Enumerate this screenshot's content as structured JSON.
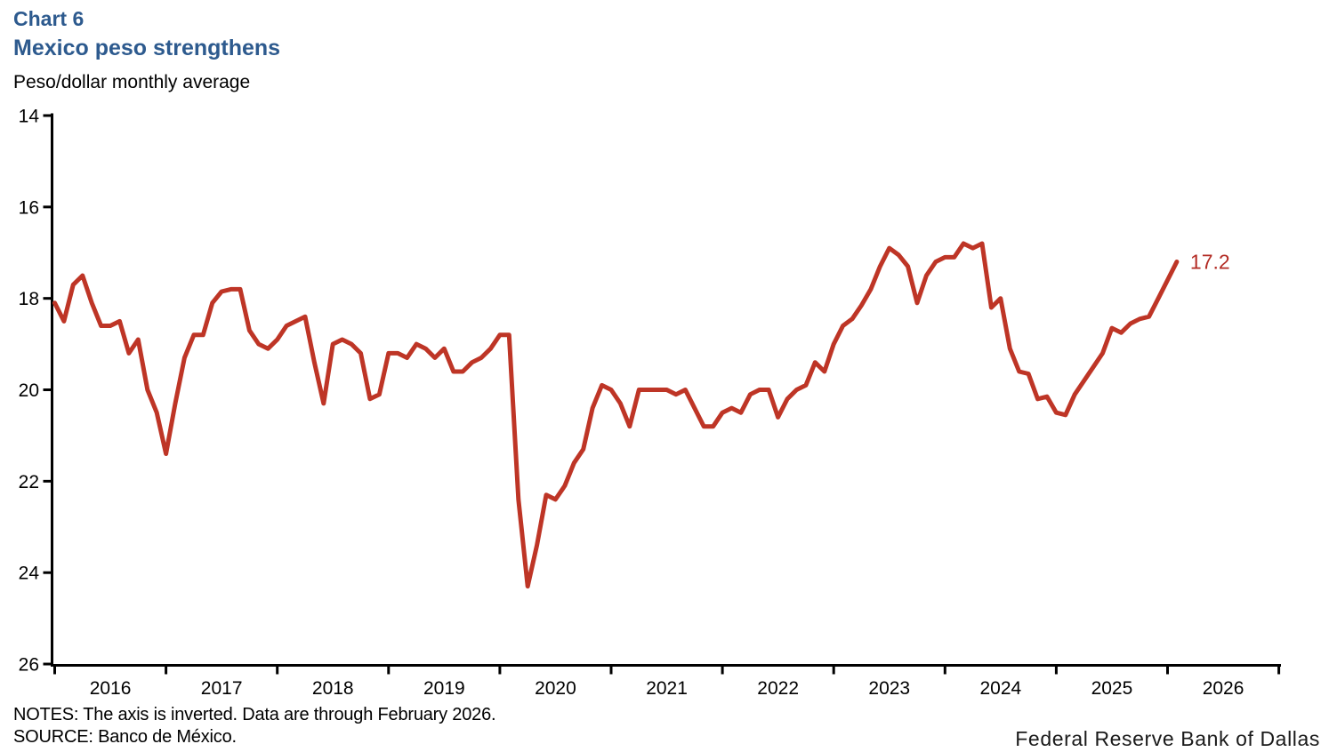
{
  "header": {
    "chart_number": "Chart 6",
    "title": "Mexico peso strengthens",
    "subtitle": "Peso/dollar monthly average"
  },
  "footer": {
    "notes": "NOTES: The axis is inverted. Data are through February 2026.",
    "source": "SOURCE: Banco de México.",
    "attribution": "Federal Reserve Bank of Dallas"
  },
  "colors": {
    "title_blue": "#2d5a8e",
    "line_red": "#be3526",
    "end_label_red": "#b32b24",
    "axis_black": "#000000",
    "text_black": "#000000"
  },
  "chart_data": {
    "type": "line",
    "title": "Mexico peso strengthens",
    "ylabel": "Peso/dollar monthly average",
    "grid": false,
    "legend_position": "none",
    "y_axis": {
      "inverted": true,
      "min": 14,
      "max": 26,
      "ticks": [
        14,
        16,
        18,
        20,
        22,
        24,
        26
      ]
    },
    "x_axis": {
      "start": "2016-01",
      "end": "2026-02",
      "tick_years": [
        2016,
        2017,
        2018,
        2019,
        2020,
        2021,
        2022,
        2023,
        2024,
        2025,
        2026
      ]
    },
    "end_label": "17.2",
    "series": [
      {
        "name": "Peso per dollar, monthly average",
        "start": "2016-01",
        "frequency": "monthly",
        "values": [
          18.1,
          18.5,
          17.7,
          17.5,
          18.1,
          18.6,
          18.6,
          18.5,
          19.2,
          18.9,
          20.0,
          20.5,
          21.4,
          20.3,
          19.3,
          18.8,
          18.8,
          18.1,
          17.85,
          17.8,
          17.8,
          18.7,
          19.0,
          19.1,
          18.9,
          18.6,
          18.5,
          18.4,
          19.4,
          20.3,
          19.0,
          18.9,
          19.0,
          19.2,
          20.2,
          20.1,
          19.2,
          19.2,
          19.3,
          19.0,
          19.1,
          19.3,
          19.1,
          19.6,
          19.6,
          19.4,
          19.3,
          19.1,
          18.8,
          18.8,
          22.4,
          24.3,
          23.4,
          22.3,
          22.4,
          22.1,
          21.6,
          21.3,
          20.4,
          19.9,
          20.0,
          20.3,
          20.8,
          20.0,
          20.0,
          20.0,
          20.0,
          20.1,
          20.0,
          20.4,
          20.8,
          20.8,
          20.5,
          20.4,
          20.5,
          20.1,
          20.0,
          20.0,
          20.6,
          20.2,
          20.0,
          19.9,
          19.4,
          19.6,
          19.0,
          18.6,
          18.45,
          18.15,
          17.8,
          17.3,
          16.9,
          17.05,
          17.3,
          18.1,
          17.5,
          17.2,
          17.1,
          17.1,
          16.8,
          16.9,
          16.8,
          18.2,
          18.0,
          19.1,
          19.6,
          19.65,
          20.2,
          20.15,
          20.5,
          20.55,
          20.1,
          19.8,
          19.5,
          19.2,
          18.65,
          18.75,
          18.55,
          18.45,
          18.4,
          18.0,
          17.6,
          17.2
        ]
      }
    ]
  }
}
